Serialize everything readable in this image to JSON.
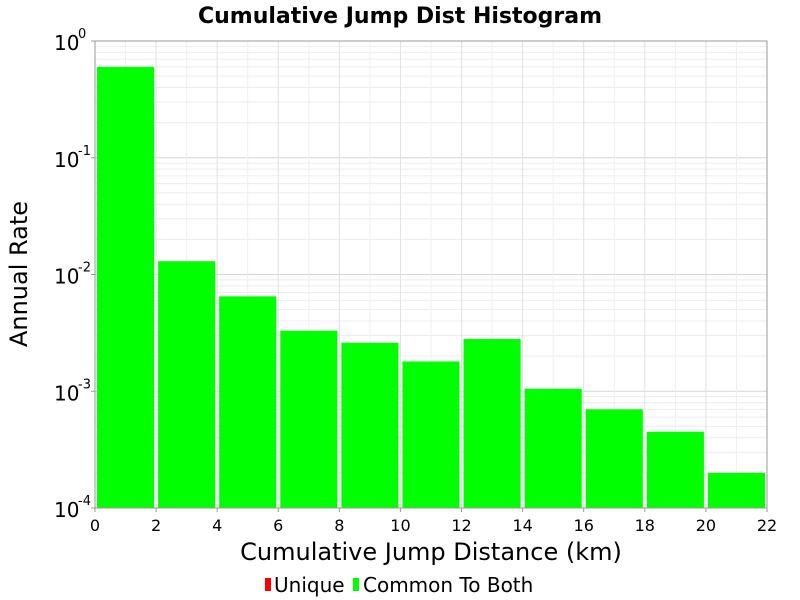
{
  "chart_data": {
    "type": "bar",
    "title": "Cumulative Jump Dist Histogram",
    "xlabel": "Cumulative Jump Distance (km)",
    "ylabel": "Annual Rate",
    "x_scale": "linear",
    "y_scale": "log",
    "xlim": [
      0,
      22
    ],
    "ylim": [
      0.0001,
      1
    ],
    "x_ticks": [
      "0",
      "2",
      "4",
      "6",
      "8",
      "10",
      "12",
      "14",
      "16",
      "18",
      "20",
      "22"
    ],
    "y_ticks": [
      {
        "base": "10",
        "exp": "0",
        "value": 1
      },
      {
        "base": "10",
        "exp": "-1",
        "value": 0.1
      },
      {
        "base": "10",
        "exp": "-2",
        "value": 0.01
      },
      {
        "base": "10",
        "exp": "-3",
        "value": 0.001
      },
      {
        "base": "10",
        "exp": "-4",
        "value": 0.0001
      }
    ],
    "grid": true,
    "legend_position": "bottom",
    "series": [
      {
        "name": "Unique",
        "color": "#ff0000",
        "bars": []
      },
      {
        "name": "Common To Both",
        "color": "#00ff00",
        "bars": [
          {
            "x0": 0,
            "x1": 2,
            "value": 0.6
          },
          {
            "x0": 2,
            "x1": 4,
            "value": 0.013
          },
          {
            "x0": 4,
            "x1": 6,
            "value": 0.0065
          },
          {
            "x0": 6,
            "x1": 8,
            "value": 0.0033
          },
          {
            "x0": 8,
            "x1": 10,
            "value": 0.0026
          },
          {
            "x0": 10,
            "x1": 12,
            "value": 0.0018
          },
          {
            "x0": 12,
            "x1": 14,
            "value": 0.0028
          },
          {
            "x0": 14,
            "x1": 16,
            "value": 0.00105
          },
          {
            "x0": 16,
            "x1": 18,
            "value": 0.0007
          },
          {
            "x0": 18,
            "x1": 20,
            "value": 0.00045
          },
          {
            "x0": 20,
            "x1": 22,
            "value": 0.0002
          }
        ]
      }
    ]
  }
}
